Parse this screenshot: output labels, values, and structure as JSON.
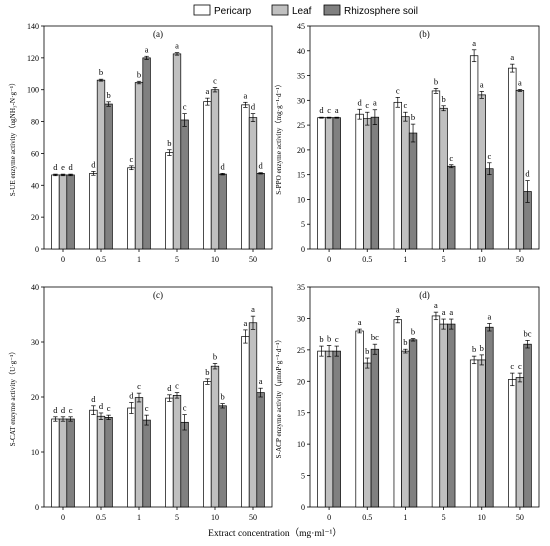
{
  "legend": {
    "items": [
      {
        "label": "Pericarp",
        "color": "#ffffff"
      },
      {
        "label": "Leaf",
        "color": "#c0c0c0"
      },
      {
        "label": "Rhizosphere soil",
        "color": "#808080"
      }
    ]
  },
  "x_axis_label": "Extract concentration（mg·ml⁻¹）",
  "chart_data": [
    {
      "type": "bar",
      "title": "(a)",
      "ylabel": "S-UE enzyme activity（ugNH₃-N·g⁻¹）",
      "ylim": [
        0,
        140
      ],
      "yticks": [
        0,
        20,
        40,
        60,
        80,
        100,
        120,
        140
      ],
      "categories": [
        "0",
        "0.5",
        "1",
        "5",
        "10",
        "50"
      ],
      "series": [
        {
          "name": "Pericarp",
          "values": [
            46.5,
            47.5,
            51,
            60.5,
            92.5,
            90.5
          ],
          "errors": [
            0.5,
            1.2,
            1.2,
            1.8,
            2.2,
            1.6
          ],
          "labels": [
            "d",
            "d",
            "c",
            "b",
            "a",
            "a"
          ]
        },
        {
          "name": "Leaf",
          "values": [
            46.5,
            106,
            104.5,
            122.5,
            100,
            82.5
          ],
          "errors": [
            0.5,
            0.6,
            0.8,
            0.8,
            1.4,
            2.5
          ],
          "labels": [
            "e",
            "b",
            "b",
            "a",
            "c",
            "d"
          ]
        },
        {
          "name": "Rhizosphere soil",
          "values": [
            46.5,
            91,
            120,
            81,
            47,
            47.5
          ],
          "errors": [
            0.5,
            1.4,
            1.0,
            4.0,
            0.5,
            0.4
          ],
          "labels": [
            "d",
            "b",
            "a",
            "c",
            "d",
            "d"
          ]
        }
      ]
    },
    {
      "type": "bar",
      "title": "(b)",
      "ylabel": "S-PPO enzyme activity（mg·g⁻¹·d⁻¹）",
      "ylim": [
        0,
        45
      ],
      "yticks": [
        0,
        5,
        10,
        15,
        20,
        25,
        30,
        35,
        40,
        45
      ],
      "categories": [
        "0",
        "0.5",
        "1",
        "5",
        "10",
        "50"
      ],
      "series": [
        {
          "name": "Pericarp",
          "values": [
            26.5,
            27.2,
            29.6,
            31.9,
            39,
            36.5
          ],
          "errors": [
            0.1,
            1.0,
            1.0,
            0.5,
            1.2,
            0.8
          ],
          "labels": [
            "d",
            "d",
            "c",
            "b",
            "a",
            "a"
          ]
        },
        {
          "name": "Leaf",
          "values": [
            26.5,
            26.3,
            26.7,
            28.4,
            31.1,
            32
          ],
          "errors": [
            0.1,
            1.3,
            0.9,
            0.5,
            0.7,
            0.2
          ],
          "labels": [
            "c",
            "c",
            "c",
            "b",
            "a",
            "a"
          ]
        },
        {
          "name": "Rhizosphere soil",
          "values": [
            26.5,
            26.6,
            23.4,
            16.7,
            16.2,
            11.6
          ],
          "errors": [
            0.1,
            1.5,
            1.8,
            0.3,
            1.2,
            2.2
          ],
          "labels": [
            "a",
            "a",
            "b",
            "c",
            "c",
            "d"
          ]
        }
      ]
    },
    {
      "type": "bar",
      "title": "(c)",
      "ylabel": "S-CAT enzyme activity（U·g⁻¹）",
      "ylim": [
        0,
        40
      ],
      "yticks": [
        0,
        10,
        20,
        30,
        40
      ],
      "categories": [
        "0",
        "0.5",
        "1",
        "5",
        "10",
        "50"
      ],
      "series": [
        {
          "name": "Pericarp",
          "values": [
            16,
            17.6,
            18,
            19.8,
            22.8,
            31
          ],
          "errors": [
            0.4,
            0.8,
            1.0,
            0.6,
            0.5,
            1.2
          ],
          "labels": [
            "d",
            "d",
            "d",
            "d",
            "b",
            "a"
          ]
        },
        {
          "name": "Leaf",
          "values": [
            16,
            16.5,
            19.9,
            20.3,
            25.6,
            33.5
          ],
          "errors": [
            0.4,
            0.6,
            0.8,
            0.5,
            0.5,
            1.2
          ],
          "labels": [
            "d",
            "d",
            "c",
            "c",
            "b",
            "a"
          ]
        },
        {
          "name": "Rhizosphere soil",
          "values": [
            16,
            16.3,
            15.8,
            15.4,
            18.4,
            20.8
          ],
          "errors": [
            0.4,
            0.4,
            0.9,
            1.4,
            0.4,
            0.8
          ],
          "labels": [
            "c",
            "c",
            "c",
            "c",
            "b",
            "a"
          ]
        }
      ]
    },
    {
      "type": "bar",
      "title": "(d)",
      "ylabel": "S-ACP enzyme activity（μmoP·g⁻¹·d⁻¹）",
      "ylim": [
        0,
        35
      ],
      "yticks": [
        0,
        5,
        10,
        15,
        20,
        25,
        30,
        35
      ],
      "categories": [
        "0",
        "0.5",
        "1",
        "5",
        "10",
        "50"
      ],
      "series": [
        {
          "name": "Pericarp",
          "values": [
            24.8,
            28,
            29.8,
            30.4,
            23.4,
            20.3
          ],
          "errors": [
            0.8,
            0.3,
            0.5,
            0.6,
            0.6,
            1.0
          ],
          "labels": [
            "b",
            "a",
            "a",
            "a",
            "b",
            "c"
          ]
        },
        {
          "name": "Leaf",
          "values": [
            24.8,
            22.9,
            24.8,
            29.1,
            23.4,
            20.6
          ],
          "errors": [
            0.9,
            0.8,
            0.3,
            0.8,
            0.8,
            0.7
          ],
          "labels": [
            "b",
            "b",
            "b",
            "a",
            "b",
            "c"
          ]
        },
        {
          "name": "Rhizosphere soil",
          "values": [
            24.8,
            25.1,
            26.6,
            29.1,
            28.6,
            25.9
          ],
          "errors": [
            0.8,
            0.8,
            0.2,
            0.8,
            0.6,
            0.6
          ],
          "labels": [
            "c",
            "bc",
            "b",
            "a",
            "a",
            "bc"
          ]
        }
      ]
    }
  ]
}
